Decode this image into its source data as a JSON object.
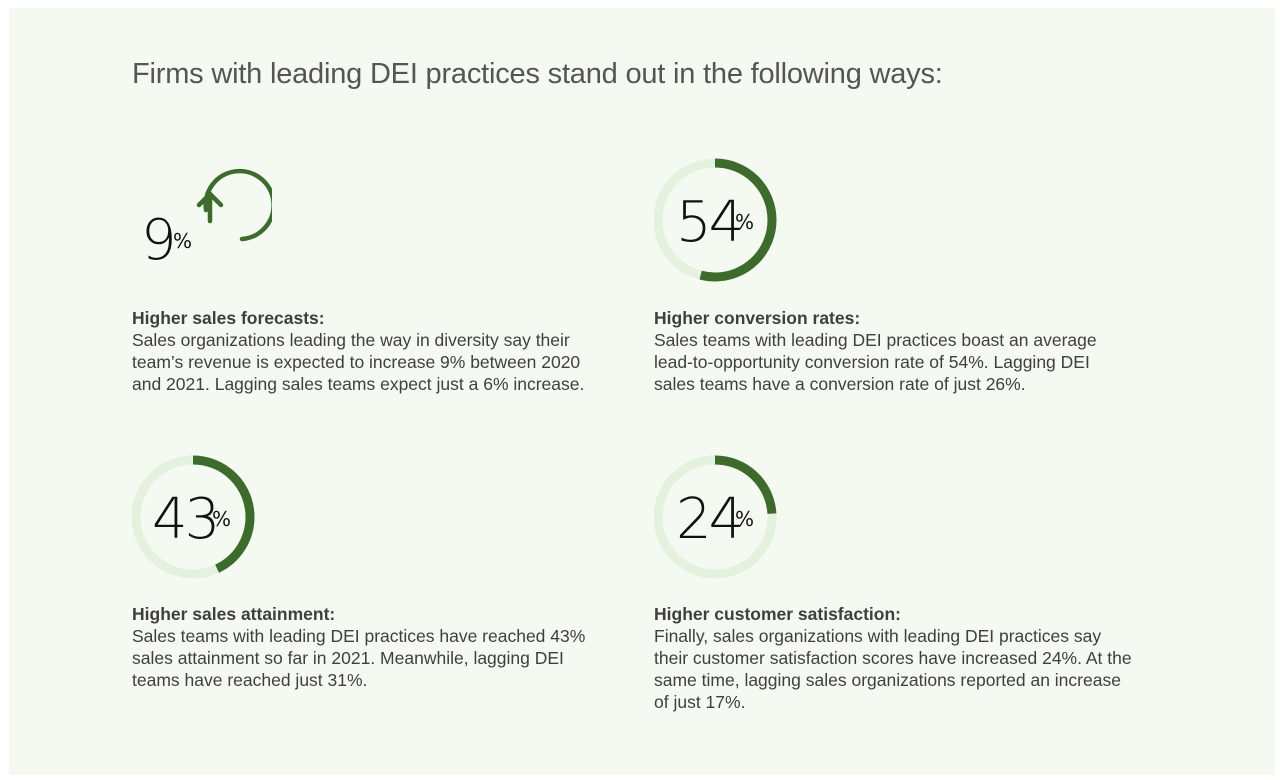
{
  "heading": "Firms with leading DEI practices stand out in the following ways:",
  "colors": {
    "accent": "#3d6b2c",
    "track": "#e4f1df",
    "background": "#f4f9f2",
    "text": "#3f3f3f"
  },
  "stats": [
    {
      "value": "9",
      "unit": "%",
      "icon": "arrow-up-circle-icon",
      "title": "Higher sales forecasts:",
      "description": "Sales organizations leading the way in diversity say their team’s revenue is expected to increase 9% between 2020 and 2021. Lagging sales teams expect just a 6% increase."
    },
    {
      "value": "54",
      "unit": "%",
      "progress_percent": 54,
      "title": "Higher conversion rates:",
      "description": "Sales teams with leading DEI practices boast an average lead-to-opportunity conversion rate of 54%. Lagging DEI sales teams have a conversion rate of just 26%."
    },
    {
      "value": "43",
      "unit": "%",
      "progress_percent": 43,
      "title": "Higher sales attainment:",
      "description": "Sales teams with leading DEI practices have reached 43% sales attainment so far in 2021. Meanwhile, lagging DEI teams have reached just 31%."
    },
    {
      "value": "24",
      "unit": "%",
      "progress_percent": 24,
      "title": "Higher customer satisfaction:",
      "description": "Finally, sales organizations with leading DEI practices say their customer satisfaction scores have increased 24%. At the same time, lagging sales organizations reported an increase of just 17%."
    }
  ]
}
